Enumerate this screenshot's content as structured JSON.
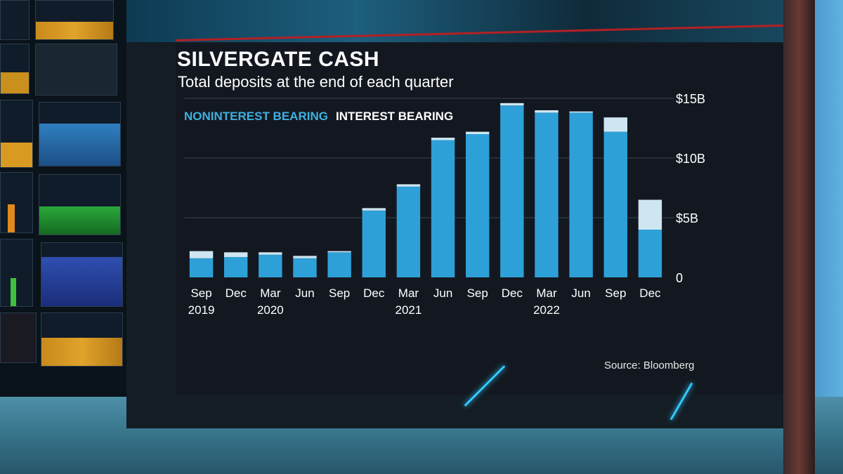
{
  "chart_data": {
    "type": "bar",
    "stacked": true,
    "title": "SILVERGATE CASH",
    "subtitle": "Total deposits at the end of each quarter",
    "legend_placement": "top-left",
    "series": [
      {
        "name": "NONINTEREST BEARING",
        "color": "#2ea0d8",
        "values": [
          1.6,
          1.7,
          1.9,
          1.6,
          2.1,
          5.6,
          7.6,
          11.5,
          12.0,
          14.4,
          13.8,
          13.8,
          12.2,
          4.0
        ]
      },
      {
        "name": "INTEREST BEARING",
        "color": "#cfe6f2",
        "values": [
          0.6,
          0.4,
          0.2,
          0.2,
          0.1,
          0.2,
          0.2,
          0.2,
          0.2,
          0.2,
          0.2,
          0.1,
          1.2,
          2.5
        ]
      }
    ],
    "categories": [
      "Sep 2019",
      "Dec",
      "Mar 2020",
      "Jun",
      "Sep",
      "Dec",
      "Mar 2021",
      "Jun",
      "Sep",
      "Dec",
      "Mar 2022",
      "Jun",
      "Sep",
      "Dec"
    ],
    "x_tick_months": [
      "Sep",
      "Dec",
      "Mar",
      "Jun",
      "Sep",
      "Dec",
      "Mar",
      "Jun",
      "Sep",
      "Dec",
      "Mar",
      "Jun",
      "Sep",
      "Dec"
    ],
    "x_tick_years": [
      "2019",
      "",
      "2020",
      "",
      "",
      "",
      "2021",
      "",
      "",
      "",
      "2022",
      "",
      "",
      ""
    ],
    "y_ticks": [
      {
        "value": 0,
        "label": "0"
      },
      {
        "value": 5,
        "label": "$5B"
      },
      {
        "value": 10,
        "label": "$10B"
      },
      {
        "value": 15,
        "label": "$15B"
      }
    ],
    "ylim": [
      0,
      15
    ],
    "ylabel": "",
    "xlabel": "",
    "grid": true
  },
  "source": "Source: Bloomberg"
}
